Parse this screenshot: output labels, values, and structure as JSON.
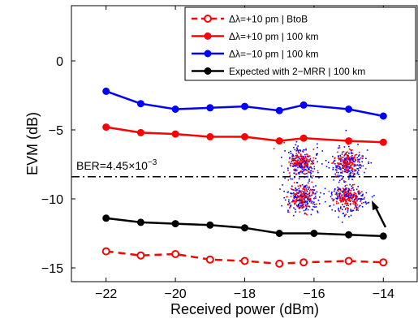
{
  "chart_data": {
    "type": "line",
    "title": "",
    "xlabel": "Received power (dBm)",
    "ylabel": "EVM (dB)",
    "xlim": [
      -23,
      -13
    ],
    "ylim": [
      -16,
      4
    ],
    "xticks": [
      -22,
      -20,
      -18,
      -16,
      -14
    ],
    "yticks": [
      0,
      -5,
      -10,
      -15
    ],
    "xtick_labels": [
      "−22",
      "−20",
      "−18",
      "−16",
      "−14"
    ],
    "ytick_labels": [
      "0",
      "−5",
      "−10",
      "−15"
    ],
    "grid": false,
    "legend_position": "top-right",
    "series": [
      {
        "name": "Δλ=+10 pm | BtoB",
        "color": "#ff0000",
        "line_style": "dashed",
        "marker": "open-circle",
        "x": [
          -22,
          -21,
          -20,
          -19,
          -18,
          -17,
          -16.3,
          -15,
          -14
        ],
        "y": [
          -13.8,
          -14.1,
          -14.0,
          -14.4,
          -14.5,
          -14.7,
          -14.6,
          -14.5,
          -14.6
        ]
      },
      {
        "name": "Δλ=+10 pm | 100 km",
        "color": "#ff0000",
        "line_style": "solid",
        "marker": "filled-circle",
        "x": [
          -22,
          -21,
          -20,
          -19,
          -18,
          -17,
          -16.3,
          -15,
          -14
        ],
        "y": [
          -4.8,
          -5.2,
          -5.3,
          -5.5,
          -5.5,
          -5.8,
          -5.6,
          -5.8,
          -5.9
        ]
      },
      {
        "name": "Δλ=−10 pm  | 100 km",
        "color": "#0000ff",
        "line_style": "solid",
        "marker": "filled-circle",
        "x": [
          -22,
          -21,
          -20,
          -19,
          -18,
          -17,
          -16.3,
          -15,
          -14
        ],
        "y": [
          -2.2,
          -3.1,
          -3.5,
          -3.4,
          -3.3,
          -3.6,
          -3.2,
          -3.5,
          -4.0
        ]
      },
      {
        "name": "Expected with 2−MRR | 100 km",
        "color": "#000000",
        "line_style": "solid",
        "marker": "filled-circle",
        "x": [
          -22,
          -21,
          -20,
          -19,
          -18,
          -17,
          -16,
          -15,
          -14
        ],
        "y": [
          -11.4,
          -11.7,
          -11.8,
          -11.9,
          -12.1,
          -12.5,
          -12.5,
          -12.6,
          -12.7
        ]
      }
    ],
    "threshold": {
      "y": -8.4,
      "label_prefix": "BER=4.45×10",
      "label_exp": "−3",
      "line_style": "dash-dot",
      "color": "#000000"
    },
    "inset": {
      "description": "",
      "colors": [
        "#ff0000",
        "#0000ff"
      ]
    }
  }
}
